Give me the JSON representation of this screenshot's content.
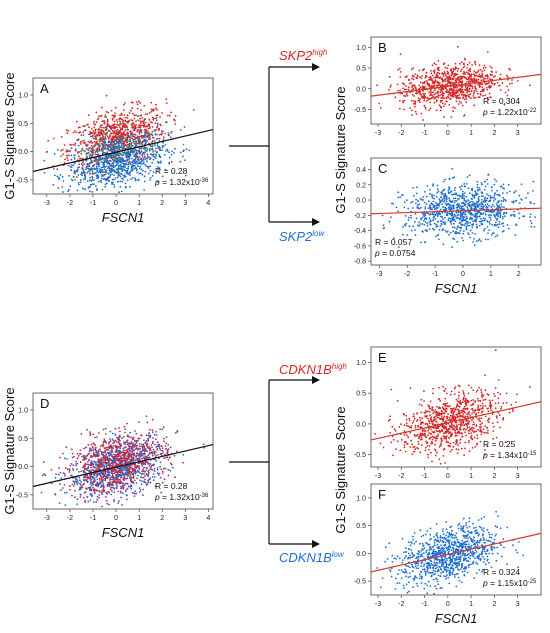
{
  "colors": {
    "red": "#d62728",
    "blue": "#1f6fd1",
    "purple": "#7a3fa0",
    "reg_black": "#111111",
    "reg_red": "#d23c2c",
    "axis": "#444444"
  },
  "groups": {
    "top": {
      "high_label": "SKP2",
      "high_sup": "high",
      "low_label": "SKP2",
      "low_sup": "low"
    },
    "bottom": {
      "high_label": "CDKN1B",
      "high_sup": "high",
      "low_label": "CDKN1B",
      "low_sup": "low"
    }
  },
  "chart_data": [
    {
      "panel": "A",
      "type": "scatter",
      "xlabel": "FSCN1",
      "ylabel": "G1-S Signature Score",
      "x_ticks": [
        "-3",
        "-2",
        "-1",
        "0",
        "1",
        "2",
        "3",
        "4"
      ],
      "y_ticks": [
        "-0.5",
        "0.0",
        "0.5",
        "1.0"
      ],
      "xlim": [
        -3.6,
        4.2
      ],
      "ylim": [
        -0.75,
        1.3
      ],
      "R_text": "R = 0.28",
      "p_label": "p",
      "p_value": "= 1.32x10",
      "p_exp": "-36",
      "regression": {
        "slope": 0.095,
        "intercept": -0.01
      },
      "series": [
        {
          "color": "red",
          "n": 900,
          "mean_y": 0.22
        },
        {
          "color": "blue",
          "n": 900,
          "mean_y": -0.18
        },
        {
          "color": "green",
          "n": 120,
          "mean_y": 0.05
        }
      ]
    },
    {
      "panel": "B",
      "type": "scatter",
      "xlabel": "",
      "ylabel": "",
      "x_ticks": [
        "-3",
        "-2",
        "-1",
        "0",
        "1",
        "2",
        "3"
      ],
      "y_ticks": [
        "-0.5",
        "0.0",
        "0.5",
        "1.0"
      ],
      "xlim": [
        -3.3,
        4.0
      ],
      "ylim": [
        -0.85,
        1.25
      ],
      "R_text": "R = 0.304",
      "p_label": "p",
      "p_value": "= 1.22x10",
      "p_exp": "-22",
      "regression": {
        "slope": 0.072,
        "intercept": 0.06
      },
      "series": [
        {
          "color": "red",
          "n": 850,
          "mean_y": 0.08
        }
      ]
    },
    {
      "panel": "C",
      "type": "scatter",
      "xlabel": "FSCN1",
      "ylabel": "",
      "x_ticks": [
        "-3",
        "-2",
        "-1",
        "0",
        "1",
        "2"
      ],
      "y_ticks": [
        "-0.8",
        "-0.6",
        "-0.4",
        "-0.2",
        "0.0",
        "0.2",
        "0.4"
      ],
      "xlim": [
        -3.3,
        2.8
      ],
      "ylim": [
        -0.85,
        0.55
      ],
      "R_text": "R = 0.057",
      "p_label": "p",
      "p_value": "= 0.0754",
      "p_exp": "",
      "regression": {
        "slope": 0.012,
        "intercept": -0.14
      },
      "series": [
        {
          "color": "blue",
          "n": 950,
          "mean_y": -0.14
        }
      ]
    },
    {
      "panel": "D",
      "type": "scatter",
      "xlabel": "FSCN1",
      "ylabel": "G1-S Signature Score",
      "x_ticks": [
        "-3",
        "-2",
        "-1",
        "0",
        "1",
        "2",
        "3",
        "4"
      ],
      "y_ticks": [
        "-0.5",
        "0.0",
        "0.5",
        "1.0"
      ],
      "xlim": [
        -3.6,
        4.2
      ],
      "ylim": [
        -0.75,
        1.3
      ],
      "R_text": "R = 0.28",
      "p_label": "p",
      "p_value": "= 1.32x10",
      "p_exp": "-36",
      "regression": {
        "slope": 0.095,
        "intercept": -0.01
      },
      "series": [
        {
          "color": "purple",
          "n": 700,
          "mean_y": 0.02
        },
        {
          "color": "blue",
          "n": 500,
          "mean_y": -0.05
        },
        {
          "color": "red",
          "n": 500,
          "mean_y": 0.08
        }
      ]
    },
    {
      "panel": "E",
      "type": "scatter",
      "xlabel": "",
      "ylabel": "",
      "x_ticks": [
        "-3",
        "-2",
        "-1",
        "0",
        "1",
        "2",
        "3"
      ],
      "y_ticks": [
        "-0.5",
        "0.0",
        "0.5",
        "1.0"
      ],
      "xlim": [
        -3.3,
        4.0
      ],
      "ylim": [
        -0.7,
        1.25
      ],
      "R_text": "R = 0.25",
      "p_label": "p",
      "p_value": "= 1.34x10",
      "p_exp": "-15",
      "regression": {
        "slope": 0.085,
        "intercept": 0.02
      },
      "series": [
        {
          "color": "red",
          "n": 850,
          "mean_y": 0.02
        }
      ]
    },
    {
      "panel": "F",
      "type": "scatter",
      "xlabel": "FSCN1",
      "ylabel": "",
      "x_ticks": [
        "-3",
        "-2",
        "-1",
        "0",
        "1",
        "2",
        "3"
      ],
      "y_ticks": [
        "-0.5",
        "0.0",
        "0.5",
        "1.0"
      ],
      "xlim": [
        -3.3,
        4.0
      ],
      "ylim": [
        -0.75,
        1.25
      ],
      "R_text": "R = 0.324",
      "p_label": "p",
      "p_value": "= 1.15x10",
      "p_exp": "-25",
      "regression": {
        "slope": 0.095,
        "intercept": -0.02
      },
      "series": [
        {
          "color": "blue",
          "n": 950,
          "mean_y": -0.02
        }
      ]
    }
  ]
}
